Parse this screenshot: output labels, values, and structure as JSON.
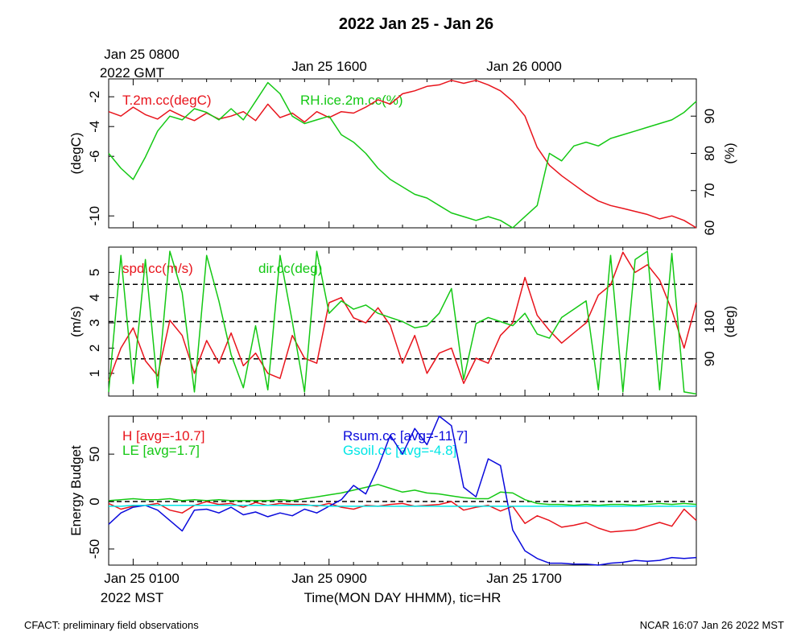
{
  "title": "2022 Jan 25 - Jan 26",
  "top_axis": {
    "start_line1": "Jan 25 0800",
    "start_line2": "2022 GMT",
    "ticks": [
      "Jan 25 1600",
      "Jan 26 0000"
    ]
  },
  "bottom_axis": {
    "ticks": [
      "Jan 25 0100",
      "Jan 25 0900",
      "Jan 25 1700"
    ],
    "tz_label": "2022 MST",
    "xlabel": "Time(MON DAY HHMM), tic=HR"
  },
  "footer": {
    "left": "CFACT: preliminary field observations",
    "right": "NCAR 16:07 Jan 26 2022 MST"
  },
  "colors": {
    "red": "#e8141c",
    "green": "#14c814",
    "blue": "#0a0adc",
    "cyan": "#00e6e6",
    "black": "#000000"
  },
  "chart_data": [
    {
      "type": "line",
      "panel": "temperature-rh",
      "x_range_hours": [
        0,
        24
      ],
      "left_axis": {
        "label": "(degC)",
        "ticks": [
          -2,
          -4,
          -6,
          -10
        ],
        "ylim": [
          -10.8,
          -0.8
        ]
      },
      "right_axis": {
        "label": "(%)",
        "ticks": [
          90,
          80,
          70,
          60
        ],
        "ylim": [
          60,
          100
        ]
      },
      "series": [
        {
          "name": "T.2m.cc(degC)",
          "axis": "left",
          "color": "red",
          "x": [
            0,
            0.5,
            1,
            1.5,
            2,
            2.5,
            3,
            3.5,
            4,
            4.5,
            5,
            5.5,
            6,
            6.5,
            7,
            7.5,
            8,
            8.5,
            9,
            9.5,
            10,
            10.5,
            11,
            11.5,
            12,
            12.5,
            13,
            13.5,
            14,
            14.5,
            15,
            15.5,
            16,
            16.5,
            17,
            17.5,
            18,
            18.5,
            19,
            19.5,
            20,
            20.5,
            21,
            21.5,
            22,
            22.5,
            23,
            23.5,
            24
          ],
          "values": [
            -3.0,
            -3.3,
            -2.7,
            -3.2,
            -3.5,
            -2.9,
            -3.3,
            -3.6,
            -3.1,
            -3.5,
            -3.3,
            -3.0,
            -3.6,
            -2.5,
            -3.4,
            -3.1,
            -3.7,
            -3.0,
            -3.4,
            -3.0,
            -3.1,
            -2.7,
            -2.2,
            -2.5,
            -1.8,
            -1.6,
            -1.3,
            -1.2,
            -0.9,
            -1.1,
            -0.9,
            -1.2,
            -1.6,
            -2.3,
            -3.3,
            -5.4,
            -6.6,
            -7.3,
            -7.9,
            -8.5,
            -9.0,
            -9.3,
            -9.5,
            -9.7,
            -9.9,
            -10.2,
            -10.0,
            -10.3,
            -10.8
          ]
        },
        {
          "name": "RH.ice.2m.cc(%)",
          "axis": "right",
          "color": "green",
          "x": [
            0,
            0.5,
            1,
            1.5,
            2,
            2.5,
            3,
            3.5,
            4,
            4.5,
            5,
            5.5,
            6,
            6.5,
            7,
            7.5,
            8,
            8.5,
            9,
            9.5,
            10,
            10.5,
            11,
            11.5,
            12,
            12.5,
            13,
            13.5,
            14,
            14.5,
            15,
            15.5,
            16,
            16.5,
            17,
            17.5,
            18,
            18.5,
            19,
            19.5,
            20,
            20.5,
            21,
            21.5,
            22,
            22.5,
            23,
            23.5,
            24
          ],
          "values": [
            80,
            76,
            73,
            79,
            86,
            90,
            89,
            92,
            91,
            89,
            92,
            89,
            94,
            99,
            96,
            90,
            88,
            89,
            90,
            85,
            83,
            80,
            76,
            73,
            71,
            69,
            68,
            66,
            64,
            63,
            62,
            63,
            62,
            60,
            63,
            66,
            80,
            78,
            82,
            83,
            82,
            84,
            85,
            86,
            87,
            88,
            89,
            91,
            94
          ]
        }
      ]
    },
    {
      "type": "line",
      "panel": "wind",
      "x_range_hours": [
        0,
        24
      ],
      "left_axis": {
        "label": "(m/s)",
        "ticks": [
          1,
          2,
          3,
          4,
          5
        ],
        "ylim": [
          0.1,
          6.0
        ]
      },
      "right_axis": {
        "label": "(deg)",
        "ticks": [
          90,
          180
        ],
        "ylim": [
          0,
          360
        ]
      },
      "reference_lines_deg": [
        90,
        180,
        270
      ],
      "series": [
        {
          "name": "spd.cc(m/s)",
          "axis": "left",
          "color": "red",
          "x": [
            0,
            0.5,
            1,
            1.5,
            2,
            2.5,
            3,
            3.5,
            4,
            4.5,
            5,
            5.5,
            6,
            6.5,
            7,
            7.5,
            8,
            8.5,
            9,
            9.5,
            10,
            10.5,
            11,
            11.5,
            12,
            12.5,
            13,
            13.5,
            14,
            14.5,
            15,
            15.5,
            16,
            16.5,
            17,
            17.5,
            18,
            18.5,
            19,
            19.5,
            20,
            20.5,
            21,
            21.5,
            22,
            22.5,
            23,
            23.5,
            24
          ],
          "values": [
            0.7,
            2.0,
            2.8,
            1.5,
            0.9,
            3.1,
            2.5,
            1.0,
            2.3,
            1.4,
            2.6,
            1.3,
            1.8,
            1.0,
            0.8,
            2.5,
            1.6,
            1.4,
            3.8,
            4.0,
            3.2,
            3.0,
            3.6,
            2.9,
            1.4,
            2.5,
            1.0,
            1.8,
            2.0,
            0.6,
            1.6,
            1.4,
            2.5,
            3.0,
            4.8,
            3.3,
            2.7,
            2.2,
            2.6,
            3.0,
            4.1,
            4.5,
            5.8,
            5.0,
            5.3,
            4.7,
            3.5,
            2.0,
            3.8
          ]
        },
        {
          "name": "dir.cc(deg)",
          "axis": "right",
          "color": "green",
          "x": [
            0,
            0.5,
            1,
            1.5,
            2,
            2.5,
            3,
            3.5,
            4,
            4.5,
            5,
            5.5,
            6,
            6.5,
            7,
            7.5,
            8,
            8.5,
            9,
            9.5,
            10,
            10.5,
            11,
            11.5,
            12,
            12.5,
            13,
            13.5,
            14,
            14.5,
            15,
            15.5,
            16,
            16.5,
            17,
            17.5,
            18,
            18.5,
            19,
            19.5,
            20,
            20.5,
            21,
            21.5,
            22,
            22.5,
            23,
            23.5,
            24
          ],
          "values": [
            10,
            340,
            30,
            330,
            20,
            350,
            250,
            10,
            340,
            230,
            100,
            20,
            170,
            15,
            340,
            180,
            10,
            350,
            200,
            230,
            210,
            220,
            200,
            190,
            180,
            165,
            170,
            200,
            260,
            40,
            175,
            190,
            180,
            170,
            200,
            150,
            140,
            190,
            210,
            230,
            15,
            340,
            10,
            330,
            350,
            15,
            345,
            10,
            5
          ]
        }
      ]
    },
    {
      "type": "line",
      "panel": "energy-budget",
      "x_range_hours": [
        0,
        24
      ],
      "left_axis": {
        "label": "Energy Budget",
        "ticks": [
          50,
          0,
          -50
        ],
        "ylim": [
          -67,
          90
        ]
      },
      "reference_lines": [
        0
      ],
      "series": [
        {
          "name": "H",
          "label": "H [avg=-10.7]",
          "color": "red",
          "x": [
            0,
            0.5,
            1,
            1.5,
            2,
            2.5,
            3,
            3.5,
            4,
            4.5,
            5,
            5.5,
            6,
            6.5,
            7,
            7.5,
            8,
            8.5,
            9,
            9.5,
            10,
            10.5,
            11,
            11.5,
            12,
            12.5,
            13,
            13.5,
            14,
            14.5,
            15,
            15.5,
            16,
            16.5,
            17,
            17.5,
            18,
            18.5,
            19,
            19.5,
            20,
            20.5,
            21,
            21.5,
            22,
            22.5,
            23,
            23.5,
            24
          ],
          "values": [
            -2,
            -8,
            -5,
            -4,
            -2,
            -9,
            -12,
            -4,
            0,
            -3,
            -2,
            -6,
            -1,
            -4,
            -2,
            -3,
            -3,
            -5,
            -2,
            -6,
            -8,
            -4,
            -5,
            -3,
            -2,
            -5,
            -4,
            -3,
            0,
            -9,
            -6,
            -4,
            -10,
            -5,
            -23,
            -15,
            -20,
            -27,
            -25,
            -22,
            -28,
            -32,
            -31,
            -30,
            -26,
            -22,
            -26,
            -8,
            -20
          ]
        },
        {
          "name": "LE",
          "label": "LE [avg=1.7]",
          "color": "green",
          "x": [
            0,
            0.5,
            1,
            1.5,
            2,
            2.5,
            3,
            3.5,
            4,
            4.5,
            5,
            5.5,
            6,
            6.5,
            7,
            7.5,
            8,
            8.5,
            9,
            9.5,
            10,
            10.5,
            11,
            11.5,
            12,
            12.5,
            13,
            13.5,
            14,
            14.5,
            15,
            15.5,
            16,
            16.5,
            17,
            17.5,
            18,
            18.5,
            19,
            19.5,
            20,
            20.5,
            21,
            21.5,
            22,
            22.5,
            23,
            23.5,
            24
          ],
          "values": [
            1,
            2,
            3,
            2,
            2,
            3,
            1,
            2,
            1,
            2,
            1,
            1,
            1,
            1,
            2,
            1,
            3,
            5,
            7,
            9,
            12,
            15,
            18,
            14,
            10,
            12,
            9,
            8,
            6,
            4,
            3,
            3,
            10,
            9,
            2,
            -2,
            -3,
            -3,
            -4,
            -3,
            -4,
            -3,
            -3,
            -4,
            -3,
            -2,
            -3,
            -2,
            -3
          ]
        },
        {
          "name": "Rsum.cc",
          "label": "Rsum.cc [avg=-11.7]",
          "color": "blue",
          "x": [
            0,
            0.5,
            1,
            1.5,
            2,
            2.5,
            3,
            3.5,
            4,
            4.5,
            5,
            5.5,
            6,
            6.5,
            7,
            7.5,
            8,
            8.5,
            9,
            9.5,
            10,
            10.5,
            11,
            11.5,
            12,
            12.5,
            13,
            13.5,
            14,
            14.5,
            15,
            15.5,
            16,
            16.5,
            17,
            17.5,
            18,
            18.5,
            19,
            19.5,
            20,
            20.5,
            21,
            21.5,
            22,
            22.5,
            23,
            23.5,
            24
          ],
          "values": [
            -24,
            -12,
            -6,
            -4,
            -9,
            -20,
            -31,
            -9,
            -8,
            -12,
            -6,
            -14,
            -11,
            -16,
            -12,
            -15,
            -8,
            -12,
            -5,
            2,
            17,
            8,
            36,
            70,
            50,
            77,
            60,
            92,
            80,
            15,
            5,
            45,
            38,
            -30,
            -52,
            -60,
            -65,
            -65,
            -66,
            -66,
            -67,
            -65,
            -64,
            -62,
            -63,
            -62,
            -59,
            -60,
            -59
          ]
        },
        {
          "name": "Gsoil.cc",
          "label": "Gsoil.cc [avg=-4.8]",
          "color": "cyan",
          "x": [
            0,
            0.5,
            1,
            1.5,
            2,
            2.5,
            3,
            3.5,
            4,
            4.5,
            5,
            5.5,
            6,
            6.5,
            7,
            7.5,
            8,
            8.5,
            9,
            9.5,
            10,
            10.5,
            11,
            11.5,
            12,
            12.5,
            13,
            13.5,
            14,
            14.5,
            15,
            15.5,
            16,
            16.5,
            17,
            17.5,
            18,
            18.5,
            19,
            19.5,
            20,
            20.5,
            21,
            21.5,
            22,
            22.5,
            23,
            23.5,
            24
          ],
          "values": [
            -5,
            -5,
            -4,
            -4,
            -4,
            -4,
            -4,
            -4,
            -4,
            -4,
            -4,
            -4,
            -4,
            -4,
            -4,
            -4,
            -4,
            -4,
            -5,
            -5,
            -5,
            -5,
            -5,
            -5,
            -5,
            -5,
            -5,
            -5,
            -5,
            -5,
            -5,
            -5,
            -5,
            -5,
            -5,
            -5,
            -5,
            -5,
            -5,
            -5,
            -5,
            -5,
            -5,
            -5,
            -5,
            -5,
            -5,
            -5,
            -5
          ]
        }
      ]
    }
  ]
}
